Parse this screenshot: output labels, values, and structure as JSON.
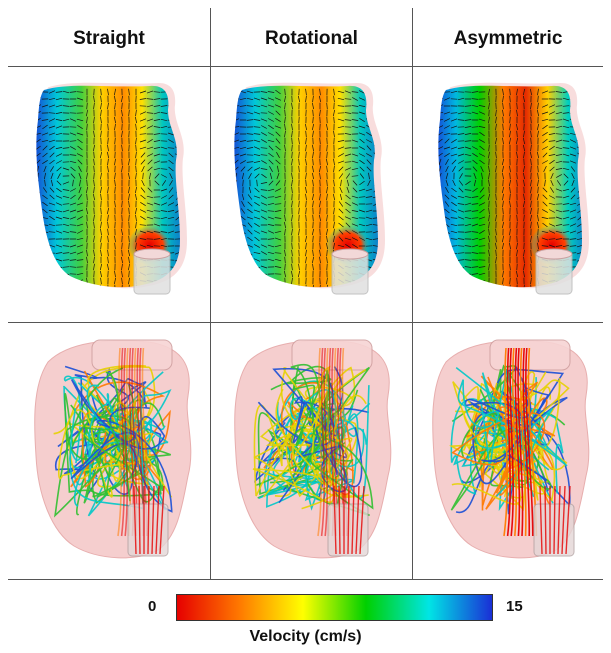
{
  "columns": [
    {
      "title": "Straight",
      "variant": "straight"
    },
    {
      "title": "Rotational",
      "variant": "rotational"
    },
    {
      "title": "Asymmetric",
      "variant": "asymmetric"
    }
  ],
  "colorbar": {
    "min_label": "0",
    "max_label": "15",
    "label": "Velocity (cm/s)",
    "colors": [
      "#e60000",
      "#ff7a00",
      "#ffff00",
      "#00d000",
      "#00e5e5",
      "#1a2fd6"
    ]
  },
  "colors": {
    "vessel_fill": "#f4c6c6",
    "vessel_stroke": "#e3a0a0",
    "tube_fill": "#e0e0e0",
    "arrow_color": "#111111"
  }
}
